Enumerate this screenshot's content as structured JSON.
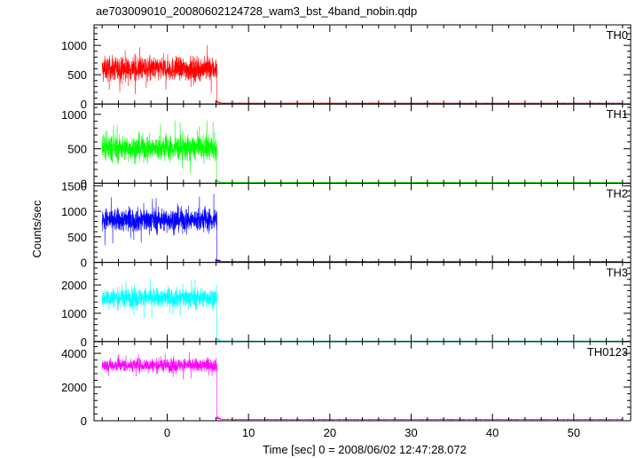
{
  "chart_data": {
    "type": "line",
    "title": "ae703009010_20080602124728_wam3_bst_4band_nobin.qdp",
    "xlabel": "Time [sec] 0 = 2008/06/02 12:47:28.072",
    "ylabel": "Counts/sec",
    "xlim": [
      -9,
      57
    ],
    "x_ticks": [
      0,
      10,
      20,
      30,
      40,
      50
    ],
    "burst_end": 6.1,
    "series": [
      {
        "name": "TH0",
        "color": "#ff0000",
        "ylim": [
          0,
          1350
        ],
        "yticks": [
          0,
          500,
          1000
        ],
        "level": 600,
        "noise": 280,
        "post_level": 15,
        "x": [
          -8,
          -6,
          -4,
          -2,
          0,
          2,
          4,
          6,
          8,
          56
        ],
        "y": [
          600,
          610,
          590,
          605,
          600,
          595,
          610,
          600,
          15,
          15
        ]
      },
      {
        "name": "TH1",
        "color": "#00ff00",
        "ylim": [
          0,
          1150
        ],
        "yticks": [
          0,
          500,
          1000
        ],
        "level": 510,
        "noise": 250,
        "post_level": 10,
        "x": [
          -8,
          -6,
          -4,
          -2,
          0,
          2,
          4,
          6,
          8,
          56
        ],
        "y": [
          510,
          520,
          500,
          515,
          505,
          510,
          500,
          510,
          10,
          10
        ]
      },
      {
        "name": "TH2",
        "color": "#0000ff",
        "ylim": [
          0,
          1550
        ],
        "yticks": [
          0,
          500,
          1000,
          1500
        ],
        "level": 830,
        "noise": 320,
        "post_level": 15,
        "x": [
          -8,
          -6,
          -4,
          -2,
          0,
          2,
          4,
          6,
          8,
          56
        ],
        "y": [
          830,
          840,
          820,
          835,
          825,
          830,
          840,
          830,
          15,
          15
        ]
      },
      {
        "name": "TH3",
        "color": "#00ffff",
        "ylim": [
          0,
          2800
        ],
        "yticks": [
          0,
          1000,
          2000
        ],
        "level": 1550,
        "noise": 480,
        "post_level": 20,
        "x": [
          -8,
          -6,
          -4,
          -2,
          0,
          2,
          4,
          6,
          8,
          56
        ],
        "y": [
          1550,
          1560,
          1540,
          1555,
          1545,
          1550,
          1560,
          1550,
          20,
          20
        ]
      },
      {
        "name": "TH0123",
        "color": "#ff00ff",
        "ylim": [
          0,
          4700
        ],
        "yticks": [
          0,
          2000,
          4000
        ],
        "level": 3300,
        "noise": 550,
        "post_level": 70,
        "x": [
          -8,
          -6,
          -4,
          -2,
          0,
          2,
          4,
          6,
          8,
          56
        ],
        "y": [
          3300,
          3320,
          3280,
          3310,
          3290,
          3300,
          3320,
          3300,
          70,
          70
        ]
      }
    ]
  }
}
